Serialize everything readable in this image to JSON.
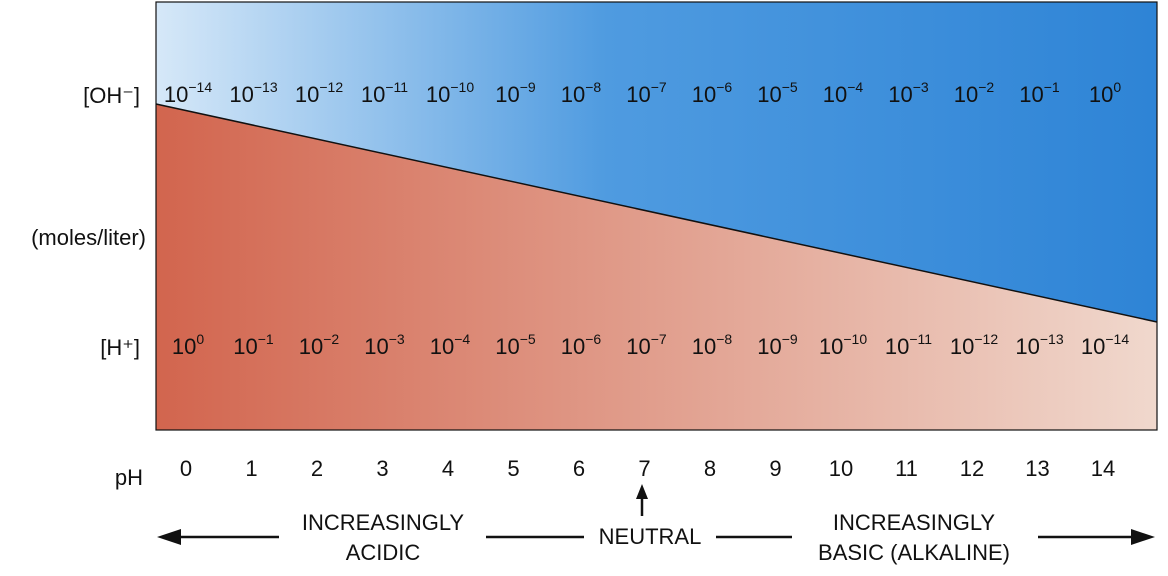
{
  "labels": {
    "oh": "[OH⁻]",
    "units": "(moles/liter)",
    "h": "[H⁺]",
    "ph": "pH"
  },
  "oh_exponents": [
    "−14",
    "−13",
    "−12",
    "−11",
    "−10",
    "−9",
    "−8",
    "−7",
    "−6",
    "−5",
    "−4",
    "−3",
    "−2",
    "−1",
    "0"
  ],
  "h_exponents": [
    "0",
    "−1",
    "−2",
    "−3",
    "−4",
    "−5",
    "−6",
    "−7",
    "−8",
    "−9",
    "−10",
    "−11",
    "−12",
    "−13",
    "−14"
  ],
  "ph_values": [
    "0",
    "1",
    "2",
    "3",
    "4",
    "5",
    "6",
    "7",
    "8",
    "9",
    "10",
    "11",
    "12",
    "13",
    "14"
  ],
  "regions": {
    "acidic_line1": "INCREASINGLY",
    "acidic_line2": "ACIDIC",
    "neutral": "NEUTRAL",
    "basic_line1": "INCREASINGLY",
    "basic_line2": "BASIC (ALKALINE)"
  },
  "colors": {
    "acid_dark": "#d2654e",
    "acid_light": "#f0d8cd",
    "base_light": "#d6e8f8",
    "base_dark": "#2e84d6",
    "base_mid": "#4f9be0"
  }
}
